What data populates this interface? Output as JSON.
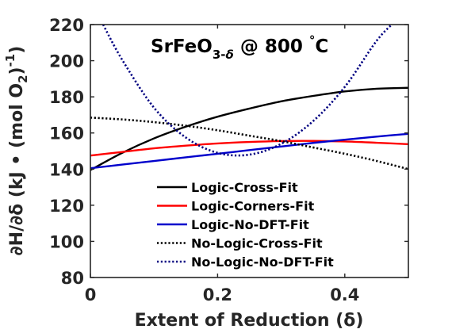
{
  "chart_data": {
    "type": "line",
    "title_main": "SrFeO",
    "title_sub": "3-",
    "title_sub_delta": "δ",
    "title_rest": " @ 800 ",
    "title_degree": "°",
    "title_unit": "C",
    "xlabel": "Extent of Reduction (δ)",
    "ylabel_prefix": "∂H/∂δ (kJ • (mol O",
    "ylabel_sub": "2",
    "ylabel_suffix": ")",
    "ylabel_sup": "-1",
    "ylabel_close": ")",
    "xlim": [
      0,
      0.5
    ],
    "ylim": [
      80,
      220
    ],
    "xticks": [
      0,
      0.2,
      0.4
    ],
    "xtick_labels": [
      "0",
      "0.2",
      "0.4"
    ],
    "yticks": [
      80,
      100,
      120,
      140,
      160,
      180,
      200,
      220
    ],
    "ytick_labels": [
      "80",
      "100",
      "120",
      "140",
      "160",
      "180",
      "200",
      "220"
    ],
    "grid": false,
    "legend_position": "bottom-right",
    "series": [
      {
        "name": "Logic-Cross-Fit",
        "color": "#000000",
        "style": "solid",
        "x": [
          0,
          0.05,
          0.1,
          0.15,
          0.2,
          0.25,
          0.3,
          0.35,
          0.4,
          0.45,
          0.5
        ],
        "y": [
          139.5,
          149,
          157,
          163.5,
          169,
          173.5,
          177.5,
          180.5,
          183,
          184.5,
          185
        ]
      },
      {
        "name": "Logic-Corners-Fit",
        "color": "#ff0000",
        "style": "solid",
        "x": [
          0,
          0.05,
          0.1,
          0.15,
          0.2,
          0.25,
          0.3,
          0.35,
          0.4,
          0.45,
          0.5
        ],
        "y": [
          147.5,
          149.5,
          151.5,
          153,
          154.2,
          155,
          155.5,
          155.6,
          155.3,
          154.6,
          153.8
        ]
      },
      {
        "name": "Logic-No-DFT-Fit",
        "color": "#0000cc",
        "style": "solid",
        "x": [
          0,
          0.05,
          0.1,
          0.15,
          0.2,
          0.25,
          0.3,
          0.35,
          0.4,
          0.45,
          0.5
        ],
        "y": [
          140.5,
          142.5,
          144.5,
          146.5,
          148.5,
          150.5,
          152.5,
          154.5,
          156.3,
          158,
          159.5
        ]
      },
      {
        "name": "No-Logic-Cross-Fit",
        "color": "#000000",
        "style": "dotted",
        "x": [
          0,
          0.05,
          0.1,
          0.15,
          0.2,
          0.25,
          0.3,
          0.35,
          0.4,
          0.45,
          0.5
        ],
        "y": [
          168.5,
          167.5,
          166,
          164,
          161.5,
          158.5,
          155.5,
          152,
          148.5,
          144.5,
          140
        ]
      },
      {
        "name": "No-Logic-No-DFT-Fit",
        "color": "#000080",
        "style": "dotted",
        "x": [
          0.02,
          0.05,
          0.1,
          0.15,
          0.2,
          0.25,
          0.3,
          0.35,
          0.4,
          0.45,
          0.48
        ],
        "y": [
          220,
          200.5,
          174,
          157.5,
          149,
          148,
          154,
          166.5,
          185.5,
          211,
          222
        ]
      }
    ]
  }
}
